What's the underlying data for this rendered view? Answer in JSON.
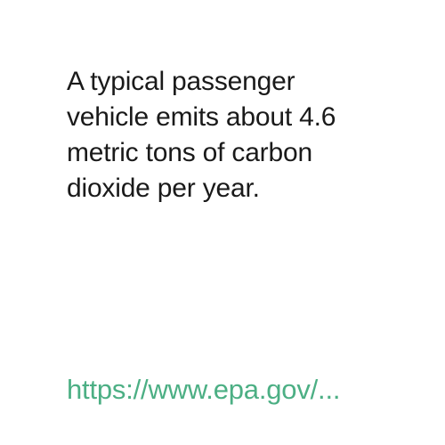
{
  "fact": {
    "lines": [
      "A typical passenger",
      "vehicle emits about 4.6",
      "metric tons of carbon",
      "dioxide per year."
    ]
  },
  "source": {
    "link_text": "https://www.epa.gov/..."
  },
  "colors": {
    "background": "#ffffff",
    "text": "#1a1a1a",
    "link": "#4caf84"
  }
}
